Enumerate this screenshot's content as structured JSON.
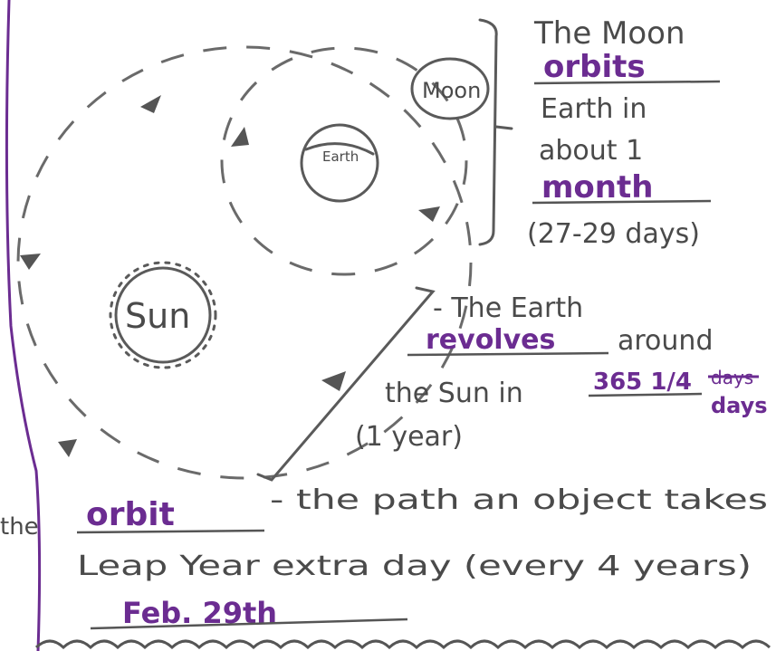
{
  "diagram": {
    "moon": "Moon",
    "earth": "Earth",
    "sun": "Sun"
  },
  "moon_note": {
    "line1": "The Moon",
    "term": "orbits",
    "line2": "Earth in",
    "line3": "about 1",
    "answer": "month",
    "line4": "(27-29 days)"
  },
  "earth_note": {
    "line1": "- The Earth",
    "term": "revolves",
    "line2": "around",
    "line3": "the Sun in",
    "answer": "365 1/4",
    "crossed": "days",
    "unit": "days",
    "line4": "(1 year)"
  },
  "definition": {
    "fragment": "the",
    "term": "orbit",
    "text": "- the path an object takes"
  },
  "leap_year": {
    "text": "Leap Year extra day (every 4 years)",
    "answer": "Feb. 29th"
  }
}
